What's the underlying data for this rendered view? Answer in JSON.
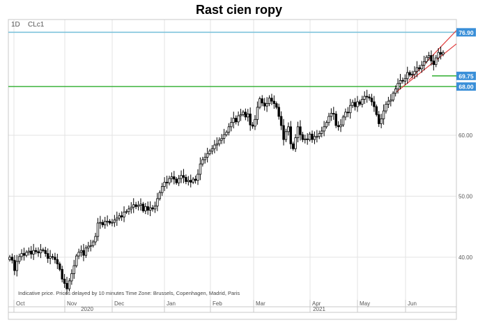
{
  "title": "Rast cien ropy",
  "interval_label": "1D",
  "symbol_label": "CLc1",
  "footer_note": "Indicative price. Prices delayed by 10 minutes    Time Zone: Brussels, Copenhagen, Madrid, Paris",
  "colors": {
    "grid": "#e3e3e3",
    "candle": "#000000",
    "resistance": "#7ec3dc",
    "support": "#3db33d",
    "channel": "#e03a3a",
    "tag_fill": "#3a8fd8"
  },
  "chart_data": {
    "type": "candlestick",
    "title": "Rast cien ropy",
    "ylim": [
      33,
      79
    ],
    "y_ticks": [
      "40.00",
      "50.00",
      "60.00"
    ],
    "x_month_labels": [
      "Oct",
      "Nov",
      "Dec",
      "Jan",
      "Feb",
      "Mar",
      "Apr",
      "May",
      "Jun"
    ],
    "x_year_labels": [
      "2020",
      "2021"
    ],
    "grid": true,
    "series": [
      {
        "x_start": "2020-09-28",
        "x_end": "2021-06-25",
        "close": [
          40.0,
          39.5,
          37.8,
          39.3,
          40.1,
          40.6,
          40.3,
          40.8,
          41.0,
          40.5,
          41.1,
          40.9,
          40.7,
          41.2,
          41.1,
          40.6,
          39.8,
          40.1,
          40.0,
          39.6,
          38.9,
          38.0,
          36.4,
          35.7,
          34.8,
          36.1,
          37.3,
          38.6,
          40.2,
          40.8,
          41.1,
          40.3,
          41.5,
          41.8,
          41.9,
          42.5,
          43.4,
          45.6,
          45.7,
          45.3,
          45.9,
          45.9,
          45.6,
          45.7,
          46.1,
          46.4,
          46.8,
          46.6,
          47.4,
          47.5,
          47.9,
          48.2,
          48.6,
          48.3,
          48.5,
          48.7,
          47.6,
          48.3,
          47.7,
          48.1,
          47.9,
          48.4,
          49.6,
          50.6,
          51.6,
          52.3,
          52.2,
          52.9,
          53.2,
          52.8,
          52.2,
          52.9,
          53.4,
          53.1,
          52.4,
          52.6,
          52.3,
          52.8,
          52.6,
          53.6,
          55.3,
          56.0,
          56.4,
          57.0,
          57.4,
          57.8,
          58.4,
          58.6,
          59.2,
          59.5,
          60.1,
          60.5,
          61.4,
          62.1,
          62.8,
          62.2,
          63.2,
          63.4,
          63.8,
          63.0,
          63.5,
          61.7,
          61.5,
          62.6,
          64.6,
          66.0,
          65.3,
          64.8,
          65.2,
          66.1,
          65.6,
          65.2,
          64.6,
          63.1,
          61.6,
          59.3,
          60.6,
          61.4,
          58.6,
          57.8,
          59.6,
          61.4,
          60.1,
          59.3,
          59.4,
          59.3,
          60.2,
          59.3,
          59.8,
          59.8,
          60.3,
          60.7,
          61.4,
          62.1,
          63.1,
          63.6,
          63.5,
          61.6,
          61.4,
          61.7,
          63.0,
          63.8,
          63.7,
          64.9,
          65.4,
          64.7,
          65.5,
          65.1,
          65.9,
          66.4,
          66.3,
          66.1,
          65.5,
          64.7,
          63.4,
          61.9,
          62.7,
          64.0,
          65.1,
          65.6,
          65.8,
          66.9,
          67.6,
          68.5,
          69.0,
          68.9,
          69.3,
          70.3,
          69.9,
          70.0,
          70.5,
          71.1,
          70.9,
          71.5,
          72.1,
          72.8,
          73.1,
          72.2,
          71.6,
          72.7,
          73.6,
          73.3,
          73.6
        ]
      }
    ],
    "annotations": [
      {
        "type": "horizontal_line",
        "value": 76.9,
        "label": "76.90",
        "color": "resistance"
      },
      {
        "type": "horizontal_line",
        "value": 69.75,
        "label": "69.75",
        "color": "support"
      },
      {
        "type": "horizontal_line",
        "value": 68.0,
        "label": "68.00",
        "color": "support"
      },
      {
        "type": "trend_channel",
        "color": "channel"
      }
    ]
  }
}
